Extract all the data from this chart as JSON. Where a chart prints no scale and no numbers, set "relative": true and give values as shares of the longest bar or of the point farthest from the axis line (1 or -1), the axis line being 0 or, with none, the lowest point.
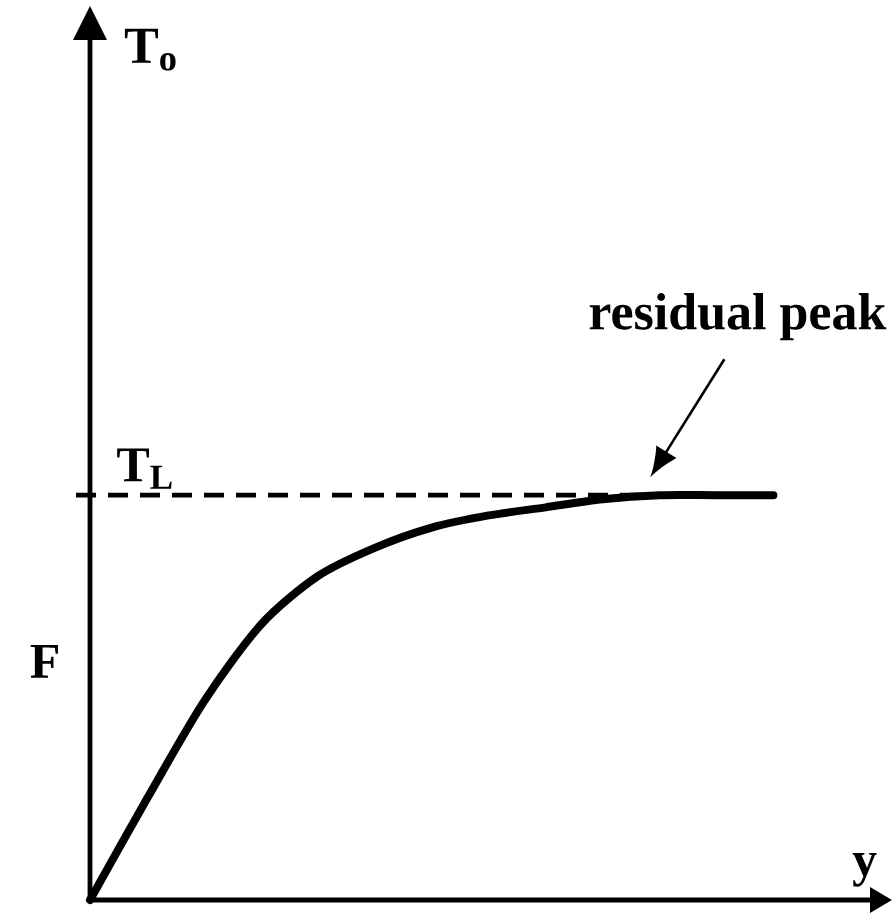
{
  "chart_data": {
    "type": "line",
    "relative": true,
    "xlabel": "y",
    "ylabel": "F",
    "categories": [
      null,
      null,
      null,
      null,
      null,
      null,
      null,
      null,
      null,
      null,
      null,
      null,
      null
    ],
    "series": [
      {
        "color": "#000000",
        "values": [
          0,
          0.25,
          0.49,
          0.68,
          0.8,
          0.87,
          0.92,
          0.95,
          0.97,
          0.99,
          1,
          1,
          1
        ]
      }
    ],
    "ref_lines": [
      {
        "axis": "y",
        "value": 1,
        "label": "T$_{L}$",
        "line_style": "dashed"
      }
    ],
    "annotations": [
      "T$_{o}$",
      "residual peak"
    ]
  }
}
